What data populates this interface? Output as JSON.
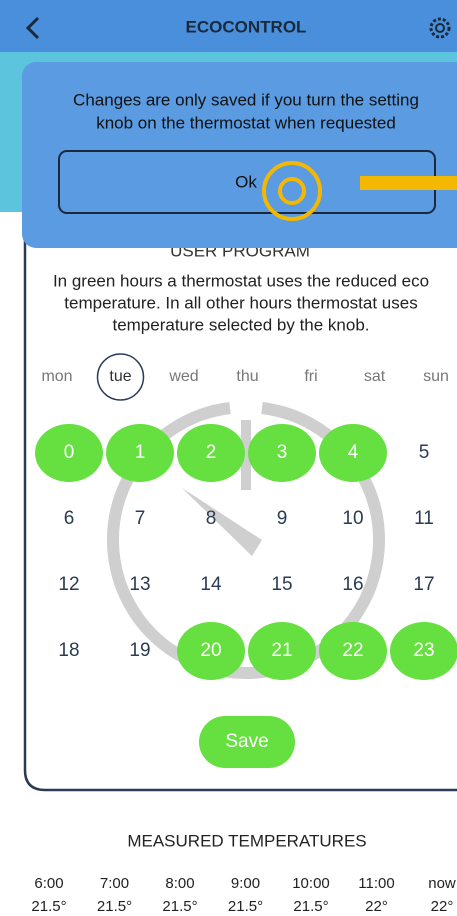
{
  "header": {
    "title": "ECOCONTROL"
  },
  "dialog": {
    "message_lines": [
      "Changes are only saved if you turn the setting",
      "knob on the thermostat when requested"
    ],
    "button": "Ok"
  },
  "program": {
    "title": "USER PROGRAM",
    "description_lines": [
      "In green hours a thermostat uses the reduced eco",
      "temperature. In all other hours thermostat uses",
      "temperature selected by the knob."
    ],
    "days": [
      {
        "label": "mon",
        "selected": false
      },
      {
        "label": "tue",
        "selected": true
      },
      {
        "label": "wed",
        "selected": false
      },
      {
        "label": "thu",
        "selected": false
      },
      {
        "label": "fri",
        "selected": false
      },
      {
        "label": "sat",
        "selected": false
      },
      {
        "label": "sun",
        "selected": false
      }
    ],
    "hours": [
      {
        "hour": 0,
        "eco": true
      },
      {
        "hour": 1,
        "eco": true
      },
      {
        "hour": 2,
        "eco": true
      },
      {
        "hour": 3,
        "eco": true
      },
      {
        "hour": 4,
        "eco": true
      },
      {
        "hour": 5,
        "eco": false
      },
      {
        "hour": 6,
        "eco": false
      },
      {
        "hour": 7,
        "eco": false
      },
      {
        "hour": 8,
        "eco": false
      },
      {
        "hour": 9,
        "eco": false
      },
      {
        "hour": 10,
        "eco": false
      },
      {
        "hour": 11,
        "eco": false
      },
      {
        "hour": 12,
        "eco": false
      },
      {
        "hour": 13,
        "eco": false
      },
      {
        "hour": 14,
        "eco": false
      },
      {
        "hour": 15,
        "eco": false
      },
      {
        "hour": 16,
        "eco": false
      },
      {
        "hour": 17,
        "eco": false
      },
      {
        "hour": 18,
        "eco": false
      },
      {
        "hour": 19,
        "eco": false
      },
      {
        "hour": 20,
        "eco": true
      },
      {
        "hour": 21,
        "eco": true
      },
      {
        "hour": 22,
        "eco": true
      },
      {
        "hour": 23,
        "eco": true
      }
    ],
    "save": "Save"
  },
  "measured": {
    "title": "MEASURED TEMPERATURES",
    "readings": [
      {
        "time": "6:00",
        "temp": "21.5°"
      },
      {
        "time": "7:00",
        "temp": "21.5°"
      },
      {
        "time": "8:00",
        "temp": "21.5°"
      },
      {
        "time": "9:00",
        "temp": "21.5°"
      },
      {
        "time": "10:00",
        "temp": "21.5°"
      },
      {
        "time": "11:00",
        "temp": "22°"
      },
      {
        "time": "now",
        "temp": "22°"
      }
    ]
  }
}
